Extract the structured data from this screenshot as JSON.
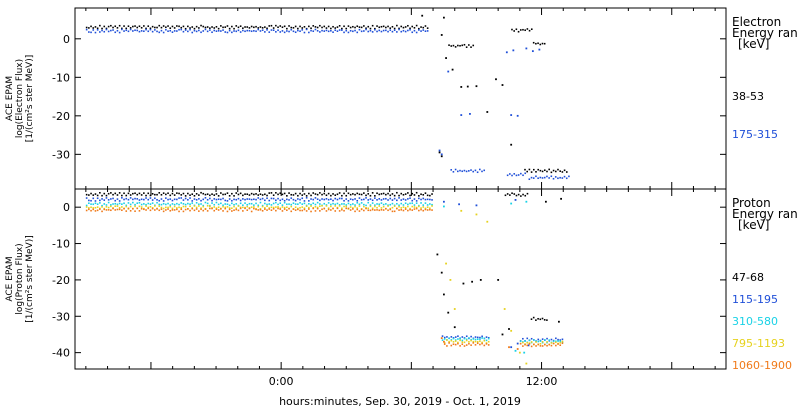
{
  "xlabel": "hours:minutes, Sep. 30, 2019 - Oct. 1, 2019",
  "x_tick_labels": [
    "0:00",
    "12:00"
  ],
  "chart_data": [
    {
      "type": "scatter",
      "panel": "electron",
      "ylabel_lines": [
        "ACE EPAM",
        "log(Electron Flux)",
        "[1/(cm²s ster MeV)]"
      ],
      "ylim": [
        -39,
        8
      ],
      "y_ticks": [
        0,
        -10,
        -20,
        -30
      ],
      "x_unit": "hours from 2019-09-30 00:00",
      "xlim": [
        -9.5,
        20.5
      ],
      "legend_title_lines": [
        "Electron",
        "Energy ran",
        "[keV]"
      ],
      "series": [
        {
          "name": "38-53",
          "color": "#000000",
          "segments": [
            {
              "x0": -9.0,
              "x1": 6.8,
              "y": 2.8
            },
            {
              "x0": 7.7,
              "x1": 8.9,
              "y": -2.0
            },
            {
              "x0": 10.6,
              "x1": 11.6,
              "y": 2.0
            },
            {
              "x0": 11.6,
              "x1": 12.2,
              "y": -1.5
            },
            {
              "x0": 11.2,
              "x1": 13.2,
              "y": -34.5
            }
          ],
          "points": [
            [
              6.5,
              6.0
            ],
            [
              7.5,
              5.5
            ],
            [
              7.4,
              1.0
            ],
            [
              7.6,
              -5.0
            ],
            [
              7.9,
              -8.0
            ],
            [
              8.3,
              -12.5
            ],
            [
              8.6,
              -12.4
            ],
            [
              9.0,
              -12.3
            ],
            [
              9.5,
              -19.0
            ],
            [
              9.9,
              -10.5
            ],
            [
              10.2,
              -12.0
            ],
            [
              10.6,
              -27.5
            ],
            [
              7.3,
              -29.5
            ],
            [
              7.4,
              -30.5
            ]
          ]
        },
        {
          "name": "175-315",
          "color": "#1f4fd8",
          "segments": [
            {
              "x0": -9.0,
              "x1": 6.8,
              "y": 1.8
            },
            {
              "x0": 7.8,
              "x1": 9.4,
              "y": -34.5
            },
            {
              "x0": 10.4,
              "x1": 11.3,
              "y": -35.5
            },
            {
              "x0": 11.4,
              "x1": 13.3,
              "y": -36.3
            }
          ],
          "points": [
            [
              7.3,
              -29.0
            ],
            [
              7.4,
              -30.0
            ],
            [
              7.7,
              -8.5
            ],
            [
              8.3,
              -19.8
            ],
            [
              8.7,
              -19.5
            ],
            [
              10.6,
              -19.8
            ],
            [
              10.9,
              -20.0
            ],
            [
              11.3,
              -2.5
            ],
            [
              11.6,
              -3.2
            ],
            [
              11.9,
              -2.8
            ],
            [
              10.4,
              -3.5
            ],
            [
              10.7,
              -3.0
            ]
          ]
        }
      ]
    },
    {
      "type": "scatter",
      "panel": "proton",
      "ylabel_lines": [
        "ACE EPAM",
        "log(Proton Flux)",
        "[1/(cm²s ster MeV)]"
      ],
      "ylim": [
        -44.5,
        5
      ],
      "y_ticks": [
        0,
        -10,
        -20,
        -30,
        -40
      ],
      "x_unit": "hours from 2019-09-30 00:00",
      "xlim": [
        -9.5,
        20.5
      ],
      "legend_title_lines": [
        "Proton",
        "Energy ran",
        "[keV]"
      ],
      "series": [
        {
          "name": "47-68",
          "color": "#000000",
          "segments": [
            {
              "x0": -9.0,
              "x1": 7.0,
              "y": 3.3
            },
            {
              "x0": 10.3,
              "x1": 11.4,
              "y": 3.2
            },
            {
              "x0": 11.5,
              "x1": 12.3,
              "y": -31.0
            }
          ],
          "points": [
            [
              7.2,
              -13.0
            ],
            [
              7.4,
              -18.0
            ],
            [
              7.5,
              -24.0
            ],
            [
              7.7,
              -29.0
            ],
            [
              8.0,
              -33.0
            ],
            [
              8.4,
              -21.0
            ],
            [
              8.8,
              -20.5
            ],
            [
              9.2,
              -20.0
            ],
            [
              10.0,
              -20.0
            ],
            [
              10.5,
              -33.5
            ],
            [
              10.2,
              -35.0
            ],
            [
              12.2,
              1.5
            ],
            [
              12.8,
              -31.5
            ],
            [
              12.9,
              2.3
            ]
          ]
        },
        {
          "name": "115-195",
          "color": "#1f4fd8",
          "segments": [
            {
              "x0": -9.0,
              "x1": 7.0,
              "y": 1.9
            },
            {
              "x0": 7.4,
              "x1": 9.6,
              "y": -36.0
            },
            {
              "x0": 11.0,
              "x1": 13.0,
              "y": -36.7
            }
          ],
          "points": [
            [
              7.5,
              1.5
            ],
            [
              8.2,
              0.8
            ],
            [
              9.0,
              0.5
            ],
            [
              10.8,
              2.0
            ],
            [
              10.6,
              -38.5
            ],
            [
              10.9,
              -37.5
            ],
            [
              11.4,
              -38.0
            ]
          ]
        },
        {
          "name": "310-580",
          "color": "#19d2e6",
          "segments": [
            {
              "x0": -9.0,
              "x1": 7.0,
              "y": 0.6
            },
            {
              "x0": 7.4,
              "x1": 9.6,
              "y": -36.6
            },
            {
              "x0": 11.0,
              "x1": 13.0,
              "y": -37.1
            }
          ],
          "points": [
            [
              7.5,
              0.2
            ],
            [
              10.6,
              1.0
            ],
            [
              11.3,
              1.5
            ],
            [
              10.8,
              -39.5
            ],
            [
              11.2,
              -40.0
            ]
          ]
        },
        {
          "name": "795-1193",
          "color": "#e6d21e",
          "segments": [
            {
              "x0": -9.0,
              "x1": 7.0,
              "y": -0.3
            },
            {
              "x0": 7.5,
              "x1": 9.6,
              "y": -37.2
            },
            {
              "x0": 11.0,
              "x1": 13.0,
              "y": -37.6
            }
          ],
          "points": [
            [
              7.6,
              -15.5
            ],
            [
              7.8,
              -20.0
            ],
            [
              8.0,
              -28.0
            ],
            [
              8.3,
              -1.0
            ],
            [
              9.0,
              -2.0
            ],
            [
              9.5,
              -4.0
            ],
            [
              10.3,
              -28.0
            ],
            [
              10.6,
              -34.0
            ],
            [
              11.0,
              -40.0
            ],
            [
              11.3,
              -43.0
            ]
          ]
        },
        {
          "name": "1060-1900",
          "color": "#f07a1a",
          "segments": [
            {
              "x0": -9.0,
              "x1": 7.0,
              "y": -1.0
            },
            {
              "x0": 7.5,
              "x1": 9.6,
              "y": -38.0
            },
            {
              "x0": 11.0,
              "x1": 13.0,
              "y": -38.1
            }
          ],
          "points": [
            [
              7.4,
              -36.0
            ],
            [
              7.5,
              -37.0
            ],
            [
              10.5,
              -38.5
            ],
            [
              10.9,
              -39.0
            ]
          ]
        }
      ]
    }
  ]
}
